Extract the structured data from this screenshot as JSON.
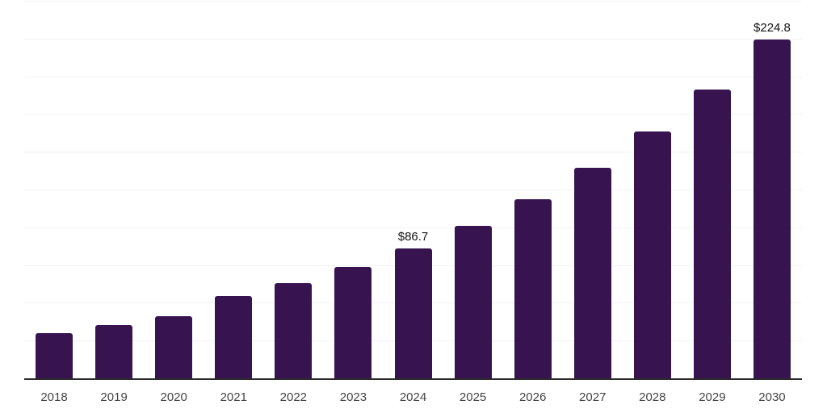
{
  "chart_data": {
    "type": "bar",
    "title": "",
    "xlabel": "",
    "ylabel": "",
    "categories": [
      "2018",
      "2019",
      "2020",
      "2021",
      "2022",
      "2023",
      "2024",
      "2025",
      "2026",
      "2027",
      "2028",
      "2029",
      "2030"
    ],
    "values": [
      30.4,
      36.0,
      41.7,
      55.0,
      63.5,
      74.3,
      86.7,
      101.5,
      119.1,
      140.0,
      163.8,
      192.0,
      224.8
    ],
    "data_labels": [
      {
        "index": 6,
        "text": "$86.7"
      },
      {
        "index": 12,
        "text": "$224.8"
      }
    ],
    "ylim": [
      0,
      250
    ],
    "gridline_interval": 25,
    "grid": true,
    "legend": "none",
    "y_tick_labels_visible": false,
    "colors": {
      "bar": "#371450",
      "gridline": "#f3f2f4",
      "axis_line": "#2b2b2b",
      "tick_label": "#444444",
      "data_label": "#111111",
      "background": "#ffffff"
    }
  }
}
